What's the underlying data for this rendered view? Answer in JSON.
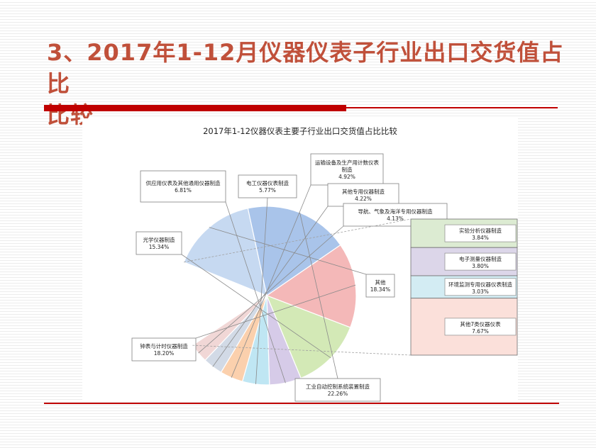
{
  "slide": {
    "title_line1": "3、2017年1-12月仪器仪表子行业出口交货值占比",
    "title_line2": "比较"
  },
  "chart_data": {
    "type": "pie",
    "title": "2017年1-12仪器仪表主要子行业出口交货值占比比较",
    "series": [
      {
        "label": "其他",
        "value": 18.34,
        "percent": "18.34%",
        "color": "#c6d9f1",
        "group": "main"
      },
      {
        "label": "工业自动控制系统装置制造",
        "value": 22.26,
        "percent": "22.26%",
        "color": "#a9c4ea",
        "group": "main"
      },
      {
        "label": "钟表与计时仪器制造",
        "value": 18.2,
        "percent": "18.20%",
        "color": "#f4b8b8",
        "group": "main"
      },
      {
        "label": "光学仪器制造",
        "value": 15.34,
        "percent": "15.34%",
        "color": "#d3e9b6",
        "group": "main"
      },
      {
        "label": "供应用仪表及其他通用仪器制造",
        "value": 6.81,
        "percent": "6.81%",
        "color": "#d6cbe8",
        "group": "main"
      },
      {
        "label": "电工仪器仪表制造",
        "value": 5.77,
        "percent": "5.77%",
        "color": "#bfe6f3",
        "group": "main"
      },
      {
        "label": "运输设备及生产用计数仪表制造",
        "value": 4.92,
        "percent": "4.92%",
        "color": "#fbd0ad",
        "group": "main"
      },
      {
        "label": "其他专用仪器制造",
        "value": 4.22,
        "percent": "4.22%",
        "color": "#d2dae6",
        "group": "main"
      },
      {
        "label": "导航、气象及海洋专用仪器制造",
        "value": 4.13,
        "percent": "4.13%",
        "color": "#f1d7d6",
        "group": "main"
      }
    ],
    "breakout": [
      {
        "label": "实验分析仪器制造",
        "value": 3.84,
        "percent": "3.84%",
        "color": "#dcebd2"
      },
      {
        "label": "电子测量仪器制造",
        "value": 3.8,
        "percent": "3.80%",
        "color": "#dcd6e9"
      },
      {
        "label": "环境监测专用仪器仪表制造",
        "value": 3.03,
        "percent": "3.03%",
        "color": "#d3ecf3"
      },
      {
        "label": "其他7类仪器仪表",
        "value": 7.67,
        "percent": "7.67%",
        "color": "#fbe0da"
      }
    ]
  }
}
